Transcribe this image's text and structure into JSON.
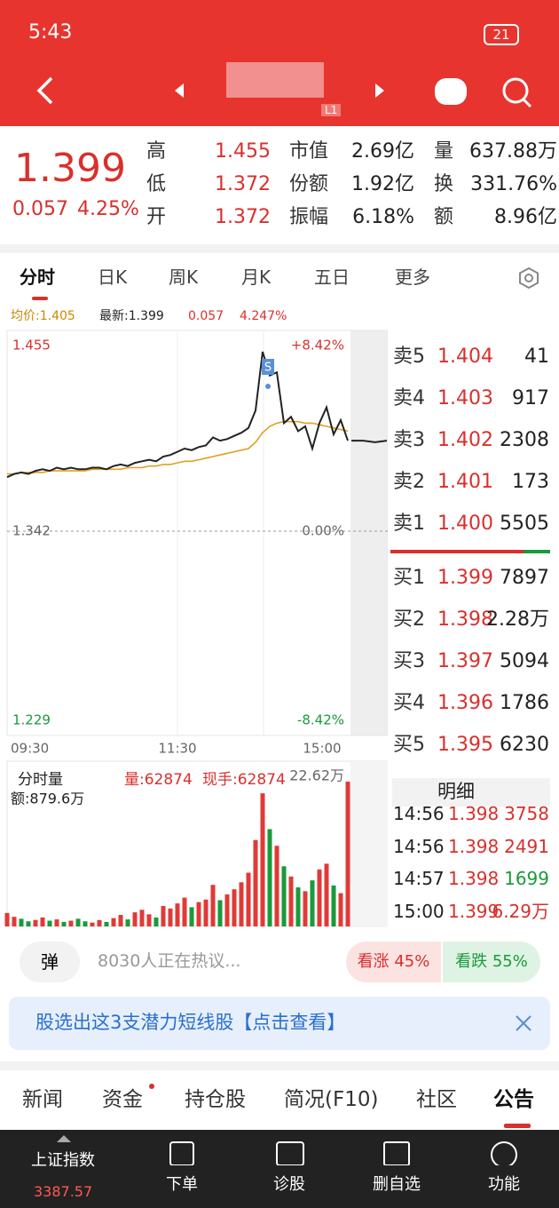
{
  "status": {
    "time": "5:43",
    "battery": "21"
  },
  "header": {
    "badge": "L1"
  },
  "quote": {
    "price": "1.399",
    "change": "0.057",
    "percent": "4.25%",
    "stats": [
      [
        "高",
        "1.455",
        "市值",
        "2.69亿",
        "量",
        "637.88万"
      ],
      [
        "低",
        "1.372",
        "份额",
        "1.92亿",
        "换",
        "331.76%"
      ],
      [
        "开",
        "1.372",
        "振幅",
        "6.18%",
        "额",
        "8.96亿"
      ]
    ]
  },
  "tabs": [
    "分时",
    "日K",
    "周K",
    "月K",
    "五日",
    "更多"
  ],
  "info": {
    "avg": "均价:1.405",
    "latest": "最新:1.399",
    "change": "0.057",
    "percent": "4.247%"
  },
  "chart": {
    "type": "line",
    "ylim": [
      1.229,
      1.455
    ],
    "yticks": [
      {
        "value": 1.455,
        "label": "1.455"
      },
      {
        "value": 1.342,
        "label": "1.342"
      },
      {
        "value": 1.229,
        "label": "1.229"
      }
    ],
    "pct_labels": [
      "+8.42%",
      "0.00%",
      "-8.42%"
    ],
    "x_labels": [
      "09:30",
      "11:30",
      "15:00"
    ],
    "marker": "S",
    "price": [
      1.376,
      1.378,
      1.379,
      1.378,
      1.38,
      1.381,
      1.38,
      1.382,
      1.381,
      1.382,
      1.381,
      1.381,
      1.382,
      1.382,
      1.381,
      1.383,
      1.384,
      1.383,
      1.385,
      1.386,
      1.387,
      1.386,
      1.389,
      1.39,
      1.392,
      1.394,
      1.393,
      1.395,
      1.396,
      1.401,
      1.399,
      1.4,
      1.402,
      1.404,
      1.407,
      1.418,
      1.455,
      1.44,
      1.442,
      1.41,
      1.414,
      1.405,
      1.408,
      1.394,
      1.41,
      1.42,
      1.403,
      1.412,
      1.399
    ],
    "avg": [
      1.378,
      1.378,
      1.379,
      1.379,
      1.379,
      1.379,
      1.38,
      1.38,
      1.38,
      1.38,
      1.38,
      1.38,
      1.381,
      1.381,
      1.381,
      1.381,
      1.381,
      1.382,
      1.382,
      1.382,
      1.383,
      1.383,
      1.384,
      1.384,
      1.385,
      1.386,
      1.386,
      1.387,
      1.388,
      1.389,
      1.39,
      1.391,
      1.392,
      1.393,
      1.394,
      1.398,
      1.404,
      1.408,
      1.41,
      1.411,
      1.411,
      1.411,
      1.41,
      1.41,
      1.409,
      1.408,
      1.407,
      1.406,
      1.405
    ],
    "after_hours": [
      1.399,
      1.399,
      1.398,
      1.399
    ]
  },
  "volume": {
    "name": "分时量",
    "vol": "量:62874",
    "hand": "现手:62874",
    "amount": "额:879.6万",
    "max_label": "22.62万",
    "ylim": [
      0,
      22.62
    ],
    "values": [
      2.1,
      1.5,
      1.2,
      0.8,
      1.0,
      1.4,
      0.9,
      1.1,
      0.7,
      0.9,
      1.2,
      0.8,
      0.6,
      1.0,
      0.7,
      1.3,
      1.8,
      1.1,
      2.2,
      2.6,
      1.9,
      1.4,
      3.2,
      2.8,
      3.6,
      4.5,
      3.0,
      3.8,
      4.2,
      6.5,
      4.1,
      5.0,
      5.8,
      6.9,
      8.4,
      13.5,
      20.8,
      15.2,
      12.6,
      9.4,
      7.8,
      6.1,
      5.5,
      7.2,
      8.9,
      9.8,
      6.4,
      5.2,
      22.62
    ],
    "colors": [
      "#e03a36",
      "#e03a36",
      "#1a9a3a",
      "#1a9a3a",
      "#e03a36",
      "#e03a36",
      "#1a9a3a",
      "#e03a36",
      "#1a9a3a",
      "#e03a36",
      "#1a9a3a",
      "#1a9a3a",
      "#e03a36",
      "#e03a36",
      "#1a9a3a",
      "#e03a36",
      "#e03a36",
      "#1a9a3a",
      "#e03a36",
      "#e03a36",
      "#e03a36",
      "#1a9a3a",
      "#e03a36",
      "#e03a36",
      "#e03a36",
      "#e03a36",
      "#1a9a3a",
      "#e03a36",
      "#e03a36",
      "#e03a36",
      "#1a9a3a",
      "#e03a36",
      "#e03a36",
      "#e03a36",
      "#e03a36",
      "#e03a36",
      "#e03a36",
      "#1a9a3a",
      "#e03a36",
      "#1a9a3a",
      "#e03a36",
      "#1a9a3a",
      "#e03a36",
      "#1a9a3a",
      "#e03a36",
      "#e03a36",
      "#1a9a3a",
      "#e03a36",
      "#e03a36"
    ]
  },
  "book": {
    "sell": [
      [
        "卖5",
        "1.404",
        "41"
      ],
      [
        "卖4",
        "1.403",
        "917"
      ],
      [
        "卖3",
        "1.402",
        "2308"
      ],
      [
        "卖2",
        "1.401",
        "173"
      ],
      [
        "卖1",
        "1.400",
        "5505"
      ]
    ],
    "buy": [
      [
        "买1",
        "1.399",
        "7897"
      ],
      [
        "买2",
        "1.398",
        "2.28万"
      ],
      [
        "买3",
        "1.397",
        "5094"
      ],
      [
        "买4",
        "1.396",
        "1786"
      ],
      [
        "买5",
        "1.395",
        "6230"
      ]
    ]
  },
  "trades": {
    "title": "明细",
    "rows": [
      [
        "14:56",
        "1.398",
        "3758"
      ],
      [
        "14:56",
        "1.398",
        "2491"
      ],
      [
        "14:57",
        "1.398",
        "1699"
      ],
      [
        "15:00",
        "1.399",
        "6.29万"
      ]
    ]
  },
  "discussion": {
    "button": "弹",
    "text": "8030人正在热议...",
    "up": "看涨 45%",
    "down": "看跌 55%"
  },
  "banner": {
    "text": "股选出这3支潜力短线股【点击查看】"
  },
  "bottom_tabs": [
    "新闻",
    "资金",
    "持仓股",
    "简况(F10)",
    "社区",
    "公告"
  ],
  "nav": {
    "index_name": "上证指数",
    "index_value": "3387.57",
    "items": [
      "下单",
      "诊股",
      "删自选",
      "功能"
    ]
  }
}
